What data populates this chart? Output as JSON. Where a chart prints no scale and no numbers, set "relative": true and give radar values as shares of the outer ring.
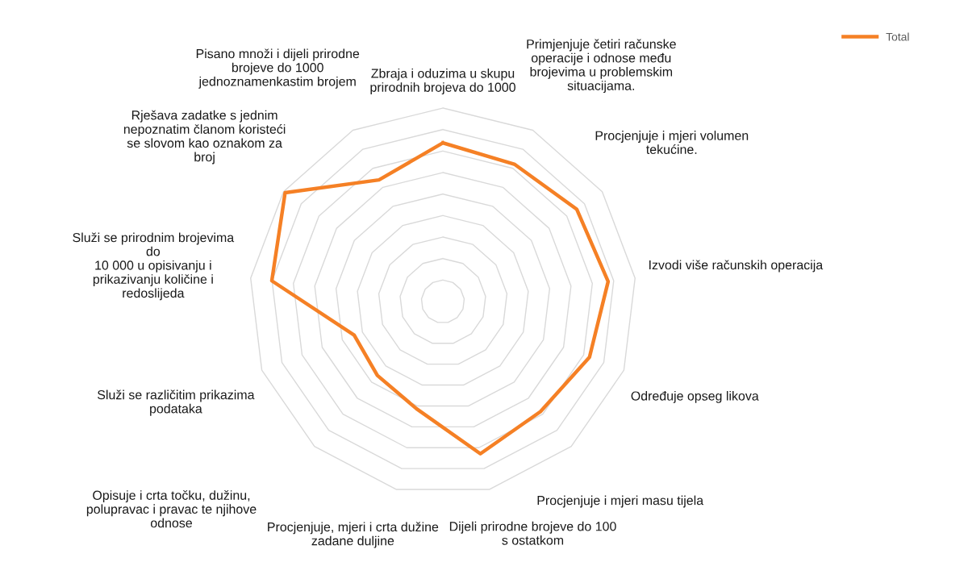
{
  "chart_data": {
    "type": "radar",
    "relative": true,
    "grid": true,
    "legend": "top right",
    "marker": "none",
    "line_style": "solid",
    "categories": [
      "Zbraja i oduzima u skupu\nprirodnih brojeva do 1000",
      "Primjenjuje četiri računske\noperacije i odnose među\nbrojevima u problemskim\nsituacijama.",
      "Procjenjuje i mjeri volumen\ntekućine.",
      "Izvodi više računskih operacija",
      "Određuje opseg likova",
      "Procjenjuje i mjeri masu tijela",
      "Dijeli prirodne brojeve do 100\ns ostatkom",
      "Procjenjuje, mjeri i crta dužine\nzadane duljine",
      "Opisuje i crta točku, dužinu,\npolupravac i pravac te njihove\nodnose",
      "Služi se različitim prikazima\npodataka",
      "Služi se prirodnim brojevima\ndo\n10 000 u opisivanju i\nprikazivanju količine i\nredoslijeda",
      "Rješava zadatke s jednim\nnepoznatim članom koristeći\nse slovom kao oznakom za\nbroj",
      "Pisano množi i dijeli prirodne\nbrojeve do 1000\njednoznamenkastim brojem"
    ],
    "series": [
      {
        "name": "Total",
        "color": "#f58025",
        "values": [
          0.82,
          0.8,
          0.84,
          0.86,
          0.81,
          0.76,
          0.81,
          0.57,
          0.51,
          0.49,
          0.89,
          0.99,
          0.71
        ]
      }
    ]
  }
}
